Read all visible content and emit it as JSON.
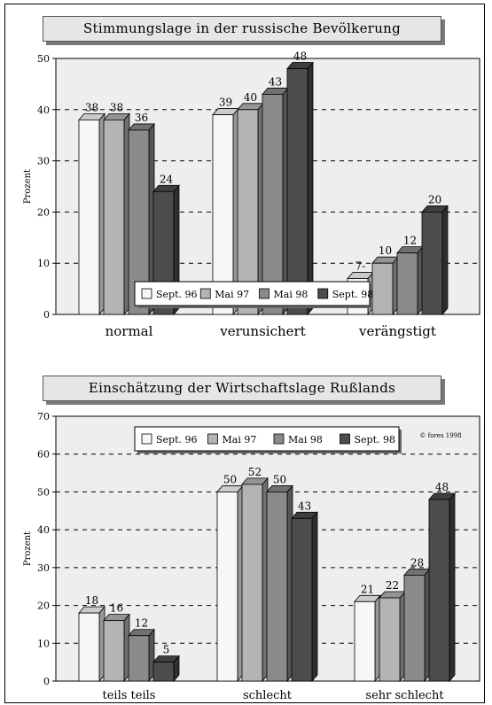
{
  "charts": [
    {
      "title": "Stimmungslage in der russische Bevölkerung",
      "ylabel": "Prozent",
      "copyright": ""
    },
    {
      "title": "Einschätzung der Wirtschaftslage Rußlands",
      "ylabel": "Prozent",
      "copyright": "© fores 1998"
    }
  ],
  "colors": {
    "sept96": "#f7f7f7",
    "mai97": "#b4b4b4",
    "mai98": "#8a8a8a",
    "sept98": "#4c4c4c",
    "background": "#eeeeee"
  },
  "chart_data": [
    {
      "type": "bar",
      "title": "Stimmungslage in der russische Bevölkerung",
      "xlabel": "",
      "ylabel": "Prozent",
      "categories": [
        "normal",
        "verunsichert",
        "verängstigt"
      ],
      "series": [
        {
          "name": "Sept. 96",
          "values": [
            38,
            39,
            7
          ]
        },
        {
          "name": "Mai 97",
          "values": [
            38,
            40,
            10
          ]
        },
        {
          "name": "Mai 98",
          "values": [
            36,
            43,
            12
          ]
        },
        {
          "name": "Sept. 98",
          "values": [
            24,
            48,
            20
          ]
        }
      ],
      "data_labels": [
        [
          "38",
          "39",
          "7-"
        ],
        [
          "38",
          "40",
          "10"
        ],
        [
          "36",
          "43",
          "12"
        ],
        [
          "24",
          "48",
          "20"
        ]
      ],
      "ylim": [
        0,
        50
      ],
      "yticks": [
        0,
        10,
        20,
        30,
        40,
        50
      ],
      "grid": true,
      "legend": "bottom-center"
    },
    {
      "type": "bar",
      "title": "Einschätzung der Wirtschaftslage Rußlands",
      "xlabel": "",
      "ylabel": "Prozent",
      "categories": [
        "teils teils",
        "schlecht",
        "sehr schlecht"
      ],
      "series": [
        {
          "name": "Sept. 96",
          "values": [
            18,
            50,
            21
          ]
        },
        {
          "name": "Mai 97",
          "values": [
            16,
            52,
            22
          ]
        },
        {
          "name": "Mai 98",
          "values": [
            12,
            50,
            28
          ]
        },
        {
          "name": "Sept. 98",
          "values": [
            5,
            43,
            48
          ]
        }
      ],
      "data_labels": [
        [
          "18",
          "50",
          "21"
        ],
        [
          "16",
          "52",
          "22"
        ],
        [
          "12",
          "50",
          "28"
        ],
        [
          "5",
          "43",
          "48"
        ]
      ],
      "ylim": [
        0,
        70
      ],
      "yticks": [
        0,
        10,
        20,
        30,
        40,
        50,
        60,
        70
      ],
      "grid": true,
      "legend": "top-center"
    }
  ]
}
